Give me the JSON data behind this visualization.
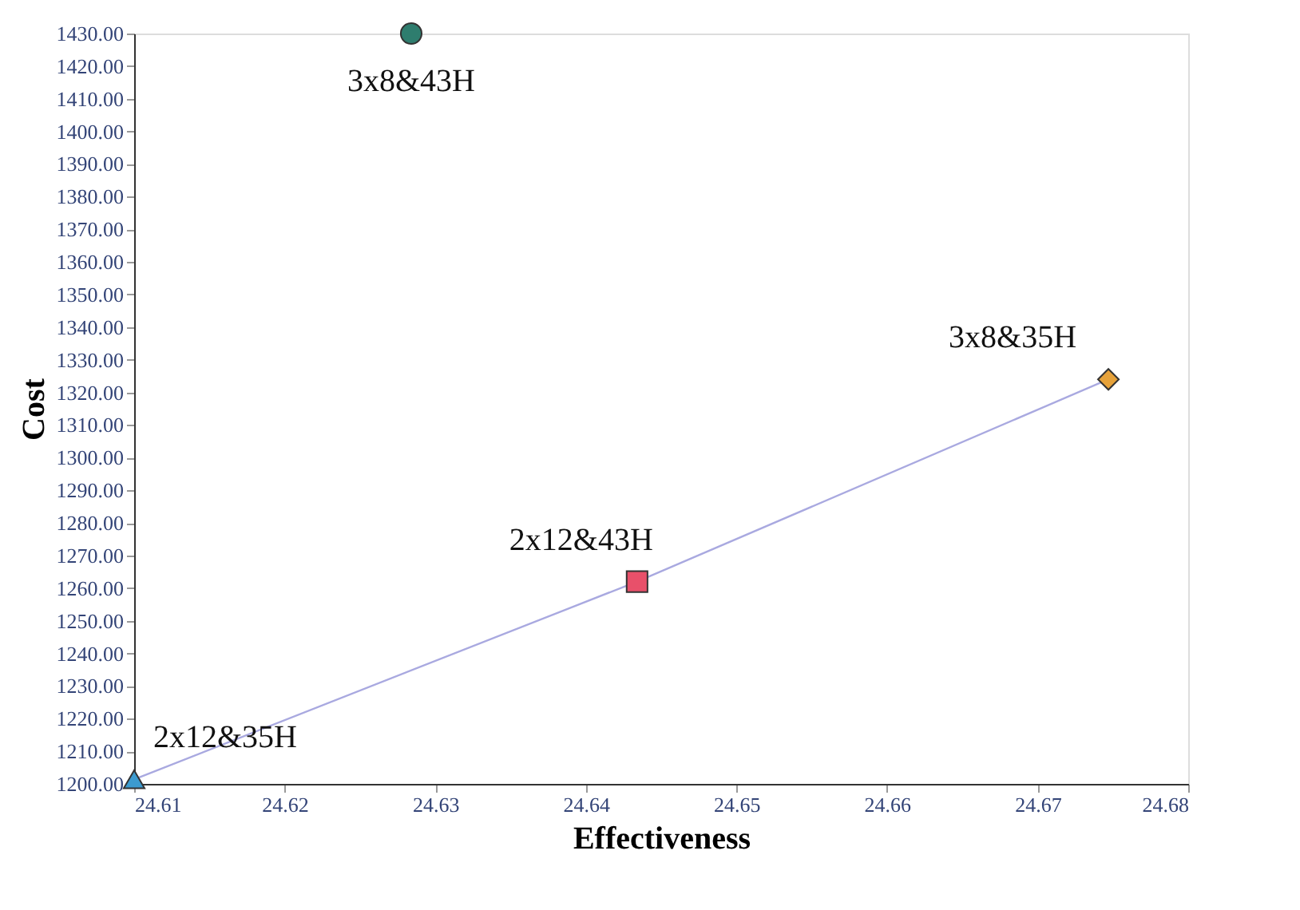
{
  "chart_data": {
    "type": "scatter",
    "xlabel": "Effectiveness",
    "ylabel": "Cost",
    "xlim": [
      24.61,
      24.68
    ],
    "xticks": [
      24.61,
      24.62,
      24.63,
      24.64,
      24.65,
      24.66,
      24.67,
      24.68
    ],
    "ylim": [
      1200,
      1430
    ],
    "yticks": [
      {
        "value": 1200,
        "label": "1200.00"
      },
      {
        "value": 1210,
        "label": "1210.00"
      },
      {
        "value": 1220,
        "label": "1220.00"
      },
      {
        "value": 1230,
        "label": "1230.00"
      },
      {
        "value": 1240,
        "label": "1240.00"
      },
      {
        "value": 1250,
        "label": "1250.00"
      },
      {
        "value": 1260,
        "label": "1260.00"
      },
      {
        "value": 1270,
        "label": "1270.00"
      },
      {
        "value": 1280,
        "label": "1280.00"
      },
      {
        "value": 1290,
        "label": "1290.00"
      },
      {
        "value": 1300,
        "label": "1300.00"
      },
      {
        "value": 1310,
        "label": "1310.00"
      },
      {
        "value": 1320,
        "label": "1320.00"
      },
      {
        "value": 1330,
        "label": "1330.00"
      },
      {
        "value": 1340,
        "label": "1340.00"
      },
      {
        "value": 1350,
        "label": "1350.00"
      },
      {
        "value": 1360,
        "label": "1360.00"
      },
      {
        "value": 1370,
        "label": "1370.00"
      },
      {
        "value": 1380,
        "label": "1380.00"
      },
      {
        "value": 1390,
        "label": "1390.00"
      },
      {
        "value": 1400,
        "label": "1400.00"
      },
      {
        "value": 1410,
        "label": "1410.00"
      },
      {
        "value": 1420,
        "label": "1420.00"
      },
      {
        "value": 1430,
        "label": "1430.00"
      }
    ],
    "grid": false,
    "series": [
      {
        "type": "line",
        "color": "#a9a9e0",
        "marker": "none",
        "line_style": "solid",
        "x": [
          24.61,
          24.6434,
          24.6747
        ],
        "values": [
          1201.4,
          1262,
          1324
        ]
      },
      {
        "name": "2x12&35H",
        "color": "#3c9bd0",
        "marker": "triangle",
        "x": [
          24.61
        ],
        "values": [
          1201.4
        ]
      },
      {
        "name": "2x12&43H",
        "color": "#e8506a",
        "marker": "square",
        "x": [
          24.6434
        ],
        "values": [
          1262
        ]
      },
      {
        "name": "3x8&35H",
        "color": "#e6a23a",
        "marker": "diamond",
        "x": [
          24.6747
        ],
        "values": [
          1324
        ]
      },
      {
        "name": "3x8&43H",
        "color": "#2e7d6e",
        "marker": "circle",
        "x": [
          24.6284
        ],
        "values": [
          1430
        ]
      }
    ]
  }
}
